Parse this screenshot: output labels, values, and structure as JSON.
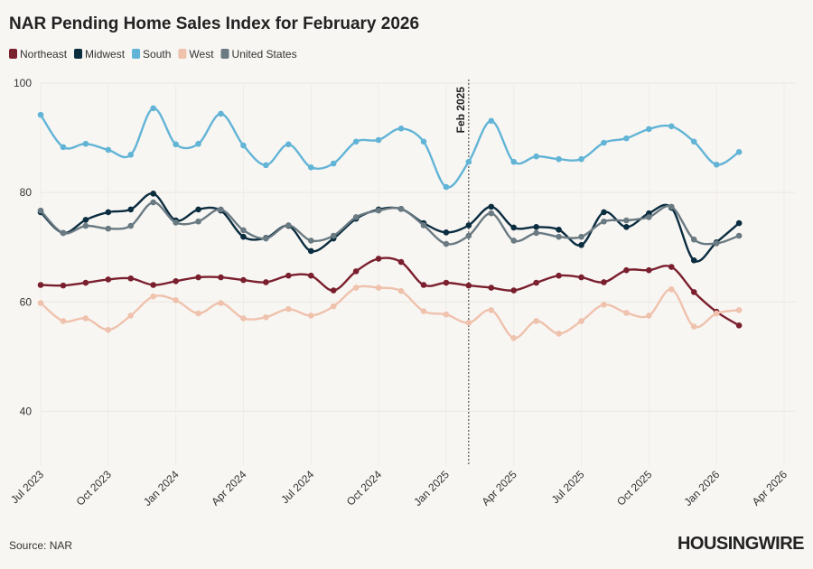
{
  "chart_data": {
    "type": "line",
    "title": "NAR Pending Home Sales Index for February 2026",
    "x": [
      "2023-07",
      "2023-08",
      "2023-09",
      "2023-10",
      "2023-11",
      "2023-12",
      "2024-01",
      "2024-02",
      "2024-03",
      "2024-04",
      "2024-05",
      "2024-06",
      "2024-07",
      "2024-08",
      "2024-09",
      "2024-10",
      "2024-11",
      "2024-12",
      "2025-01",
      "2025-02",
      "2025-03",
      "2025-04",
      "2025-05",
      "2025-06",
      "2025-07",
      "2025-08",
      "2025-09",
      "2025-10",
      "2025-11",
      "2025-12",
      "2026-01",
      "2026-02"
    ],
    "series": [
      {
        "name": "Northeast",
        "color": "#7a1f2e",
        "values": [
          63.1,
          63.0,
          63.5,
          64.1,
          64.3,
          63.1,
          63.8,
          64.5,
          64.5,
          64.0,
          63.6,
          64.8,
          64.8,
          62.1,
          65.6,
          67.9,
          67.3,
          63.1,
          63.5,
          63.0,
          62.6,
          62.1,
          63.5,
          64.8,
          64.5,
          63.6,
          65.8,
          65.8,
          66.4,
          61.8,
          58.2,
          55.7
        ]
      },
      {
        "name": "Midwest",
        "color": "#0b2d40",
        "values": [
          76.4,
          72.6,
          75.0,
          76.4,
          76.9,
          79.8,
          74.9,
          76.9,
          76.7,
          71.9,
          71.7,
          73.9,
          69.3,
          71.6,
          75.2,
          76.9,
          77.0,
          74.4,
          72.7,
          74.0,
          77.4,
          73.6,
          73.7,
          73.2,
          70.4,
          76.4,
          73.7,
          76.2,
          77.2,
          67.6,
          70.9,
          74.4
        ]
      },
      {
        "name": "South",
        "color": "#62b4d6",
        "values": [
          94.2,
          88.3,
          88.9,
          87.8,
          86.9,
          95.4,
          88.8,
          88.9,
          94.4,
          88.6,
          85.0,
          88.8,
          84.6,
          85.3,
          89.3,
          89.6,
          91.7,
          89.3,
          81.0,
          85.6,
          93.1,
          85.6,
          86.6,
          86.1,
          86.1,
          89.1,
          89.9,
          91.6,
          92.1,
          89.3,
          85.1,
          87.4
        ]
      },
      {
        "name": "West",
        "color": "#efc2ad",
        "values": [
          59.8,
          56.5,
          57.0,
          54.9,
          57.5,
          61.0,
          60.3,
          57.9,
          59.8,
          57.0,
          57.2,
          58.7,
          57.5,
          59.2,
          62.6,
          62.6,
          62.0,
          58.3,
          57.7,
          56.2,
          58.5,
          53.4,
          56.5,
          54.2,
          56.5,
          59.5,
          58.0,
          57.5,
          62.3,
          55.5,
          57.9,
          58.5
        ]
      },
      {
        "name": "United States",
        "color": "#6a7a82",
        "values": [
          76.7,
          72.6,
          73.9,
          73.4,
          73.9,
          78.2,
          74.5,
          74.7,
          76.9,
          73.1,
          71.6,
          74.0,
          71.2,
          72.1,
          75.5,
          76.7,
          77.0,
          74.0,
          70.6,
          72.1,
          76.2,
          71.2,
          72.6,
          71.9,
          71.9,
          74.7,
          74.9,
          75.5,
          77.4,
          71.4,
          70.7,
          72.1
        ]
      }
    ],
    "xlim": [
      "2023-07",
      "2026-04"
    ],
    "xticks": [
      {
        "value": "2023-07",
        "label": "Jul 2023"
      },
      {
        "value": "2023-10",
        "label": "Oct 2023"
      },
      {
        "value": "2024-01",
        "label": "Jan 2024"
      },
      {
        "value": "2024-04",
        "label": "Apr 2024"
      },
      {
        "value": "2024-07",
        "label": "Jul 2024"
      },
      {
        "value": "2024-10",
        "label": "Oct 2024"
      },
      {
        "value": "2025-01",
        "label": "Jan 2025"
      },
      {
        "value": "2025-04",
        "label": "Apr 2025"
      },
      {
        "value": "2025-07",
        "label": "Jul 2025"
      },
      {
        "value": "2025-10",
        "label": "Oct 2025"
      },
      {
        "value": "2026-01",
        "label": "Jan 2026"
      },
      {
        "value": "2026-04",
        "label": "Apr 2026"
      }
    ],
    "ylim": [
      30,
      100
    ],
    "yticks": [
      40,
      60,
      80,
      100
    ],
    "grid": true,
    "annotation": {
      "text": "Feb 2025",
      "x": "2025-02"
    },
    "source": "Source: NAR",
    "brand": "HOUSINGWIRE"
  }
}
